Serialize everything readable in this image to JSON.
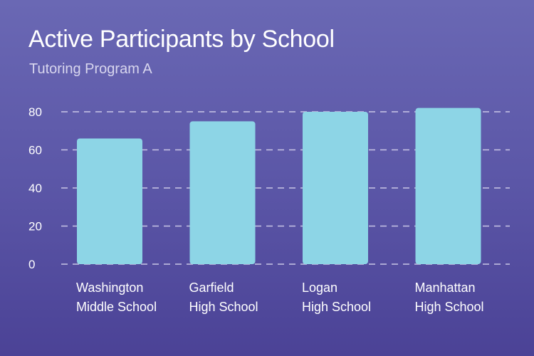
{
  "chart_data": {
    "type": "bar",
    "title": "Active Participants by School",
    "subtitle": "Tutoring Program A",
    "categories": [
      [
        "Washington",
        "Middle School"
      ],
      [
        "Garfield",
        "High School"
      ],
      [
        "Logan",
        "High School"
      ],
      [
        "Manhattan",
        "High School"
      ]
    ],
    "values": [
      66,
      75,
      80,
      82
    ],
    "ylim": [
      0,
      80
    ],
    "yticks": [
      0,
      20,
      40,
      60,
      80
    ],
    "grid": true,
    "colors": {
      "bar": "#8dd5e6",
      "text": "#ffffff",
      "grid": "#c9c6e6"
    }
  }
}
